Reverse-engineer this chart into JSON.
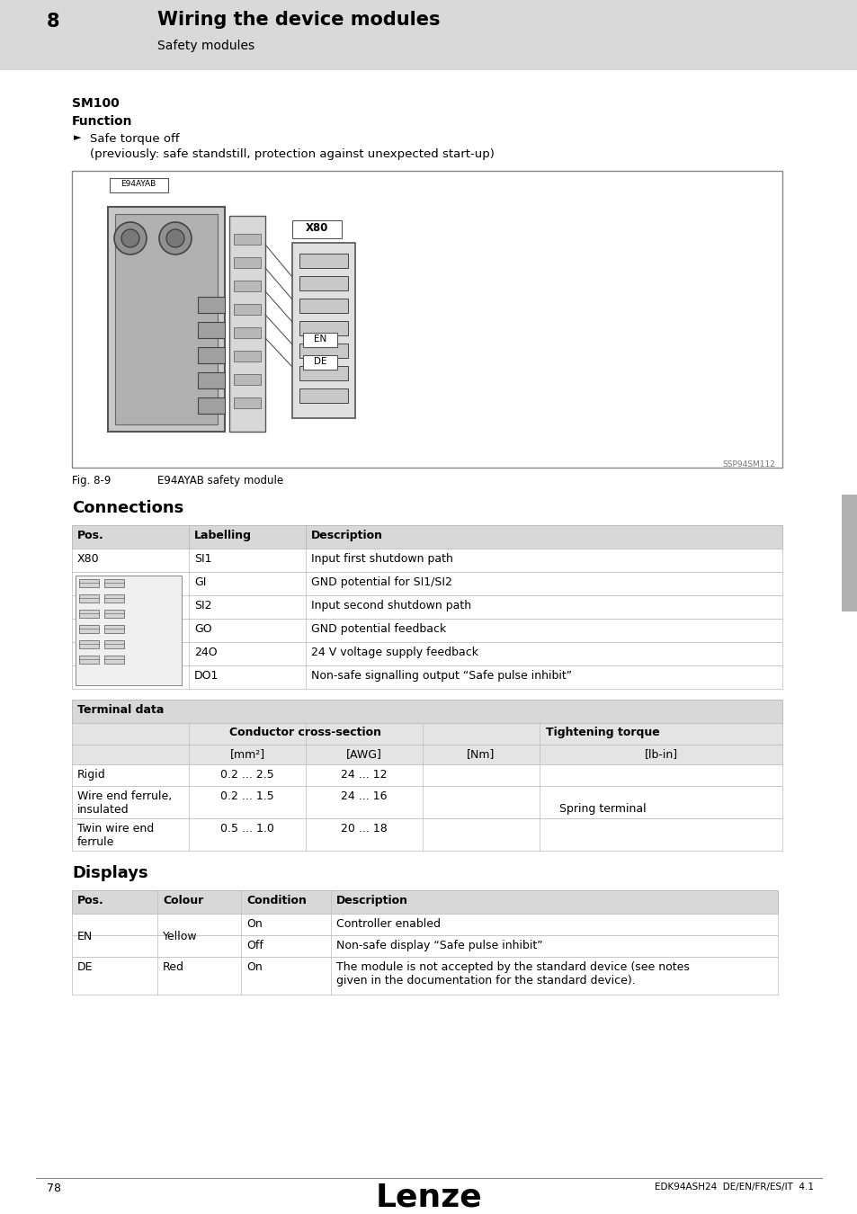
{
  "page_num": "78",
  "footer_right": "EDK94ASH24  DE/EN/FR/ES/IT  4.1",
  "header_chapter": "8",
  "header_title": "Wiring the device modules",
  "header_subtitle": "Safety modules",
  "header_bg": "#d9d9d9",
  "section_title": "SM100",
  "section_subtitle": "Function",
  "bullet_text": "Safe torque off",
  "bullet_sub": "(previously: safe standstill, protection against unexpected start-up)",
  "fig_label": "Fig. 8-9",
  "fig_desc": "E94AYAB safety module",
  "fig_code": "SSP94SM112",
  "connections_title": "Connections",
  "conn_headers": [
    "Pos.",
    "Labelling",
    "Description"
  ],
  "conn_rows": [
    [
      "X80",
      "SI1",
      "Input first shutdown path"
    ],
    [
      "",
      "GI",
      "GND potential for SI1/SI2"
    ],
    [
      "",
      "SI2",
      "Input second shutdown path"
    ],
    [
      "",
      "GO",
      "GND potential feedback"
    ],
    [
      "",
      "24O",
      "24 V voltage supply feedback"
    ],
    [
      "",
      "DO1",
      "Non-safe signalling output “Safe pulse inhibit”"
    ]
  ],
  "terminal_title": "Terminal data",
  "terminal_subheaders": [
    "Conductor cross-section",
    "Tightening torque"
  ],
  "terminal_units": [
    "[mm²]",
    "[AWG]",
    "[Nm]",
    "[lb-in]"
  ],
  "terminal_rows": [
    [
      "Rigid",
      "0.2 ... 2.5",
      "24 ... 12"
    ],
    [
      "Wire end ferrule,\ninsulated",
      "0.2 ... 1.5",
      "24 ... 16"
    ],
    [
      "Twin wire end\nferrule",
      "0.5 ... 1.0",
      "20 ... 18"
    ]
  ],
  "spring_terminal_text": "Spring terminal",
  "displays_title": "Displays",
  "disp_headers": [
    "Pos.",
    "Colour",
    "Condition",
    "Description"
  ],
  "disp_rows": [
    [
      "EN",
      "Yellow",
      "On",
      "Controller enabled"
    ],
    [
      "EN",
      "Yellow",
      "Off",
      "Non-safe display “Safe pulse inhibit”"
    ],
    [
      "DE",
      "Red",
      "On",
      "The module is not accepted by the standard device (see notes\ngiven in the documentation for the standard device)."
    ]
  ],
  "bg_white": "#ffffff",
  "bg_light_gray": "#f0f0f0",
  "border_color": "#bbbbbb",
  "table_header_bg": "#d8d8d8",
  "table_subheader_bg": "#e4e4e4",
  "side_tab_color": "#b0b0b0"
}
